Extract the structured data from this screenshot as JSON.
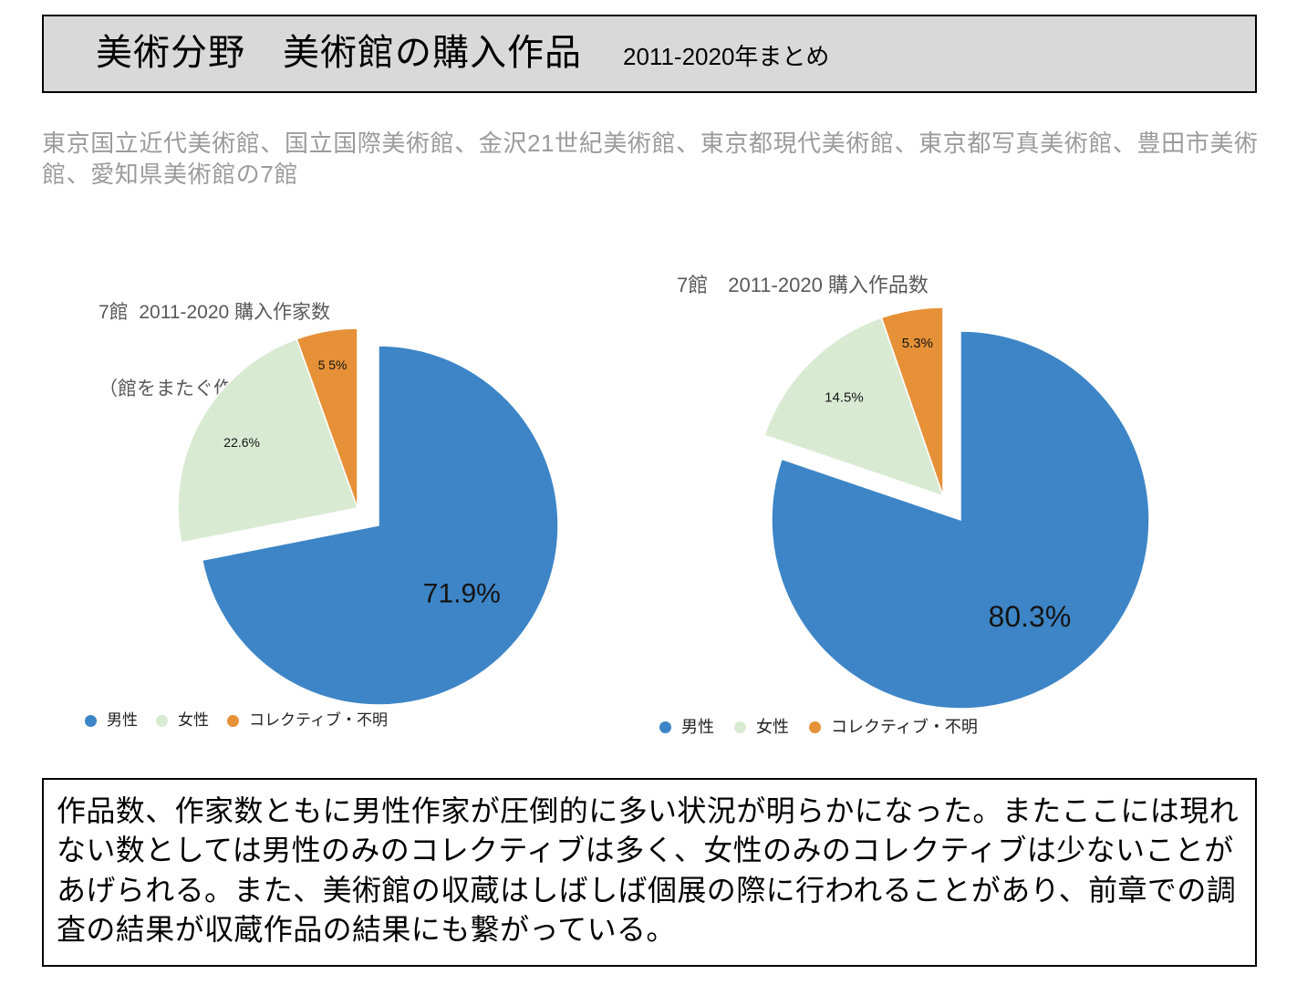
{
  "header": {
    "title": "美術分野　美術館の購入作品",
    "subtitle": "2011-2020年まとめ"
  },
  "intro": {
    "lines": [
      "東京国立近代美術館、国立国際美術館、金沢21世紀美術館、東京都現代美術館、東京都写真美術館、豊田市美術",
      "館、愛知県美術館の7館"
    ]
  },
  "chart_data": [
    {
      "type": "pie",
      "title": "7館  2011-2020 購入作家数",
      "subtitle": "（館をまたぐ作家の重複あり）",
      "categories": [
        "男性",
        "女性",
        "コレクティブ・不明"
      ],
      "values": [
        71.9,
        22.6,
        5.5
      ],
      "data_labels": [
        "71.9%",
        "22.6%",
        "5 5%"
      ],
      "colors": [
        "#3d85c6",
        "#d9ead3",
        "#e69138"
      ],
      "legend": "bottom-left"
    },
    {
      "type": "pie",
      "title": "7館　2011-2020 購入作品数",
      "categories": [
        "男性",
        "女性",
        "コレクティブ・不明"
      ],
      "values": [
        80.3,
        14.5,
        5.3
      ],
      "data_labels": [
        "80.3%",
        "14.5%",
        "5.3%"
      ],
      "colors": [
        "#3d85c6",
        "#d9ead3",
        "#e69138"
      ],
      "legend": "bottom-left"
    }
  ],
  "summary": {
    "lines": [
      "作品数、作家数ともに男性作家が圧倒的に多い状況が明らかになった。またここには現れ",
      "ない数としては男性のみのコレクティブは多く、女性のみのコレクティブは少ないことが",
      "あげられる。また、美術館の収蔵はしばしば個展の際に行われることがあり、前章での調",
      "査の結果が収蔵作品の結果にも繋がっている。"
    ]
  }
}
